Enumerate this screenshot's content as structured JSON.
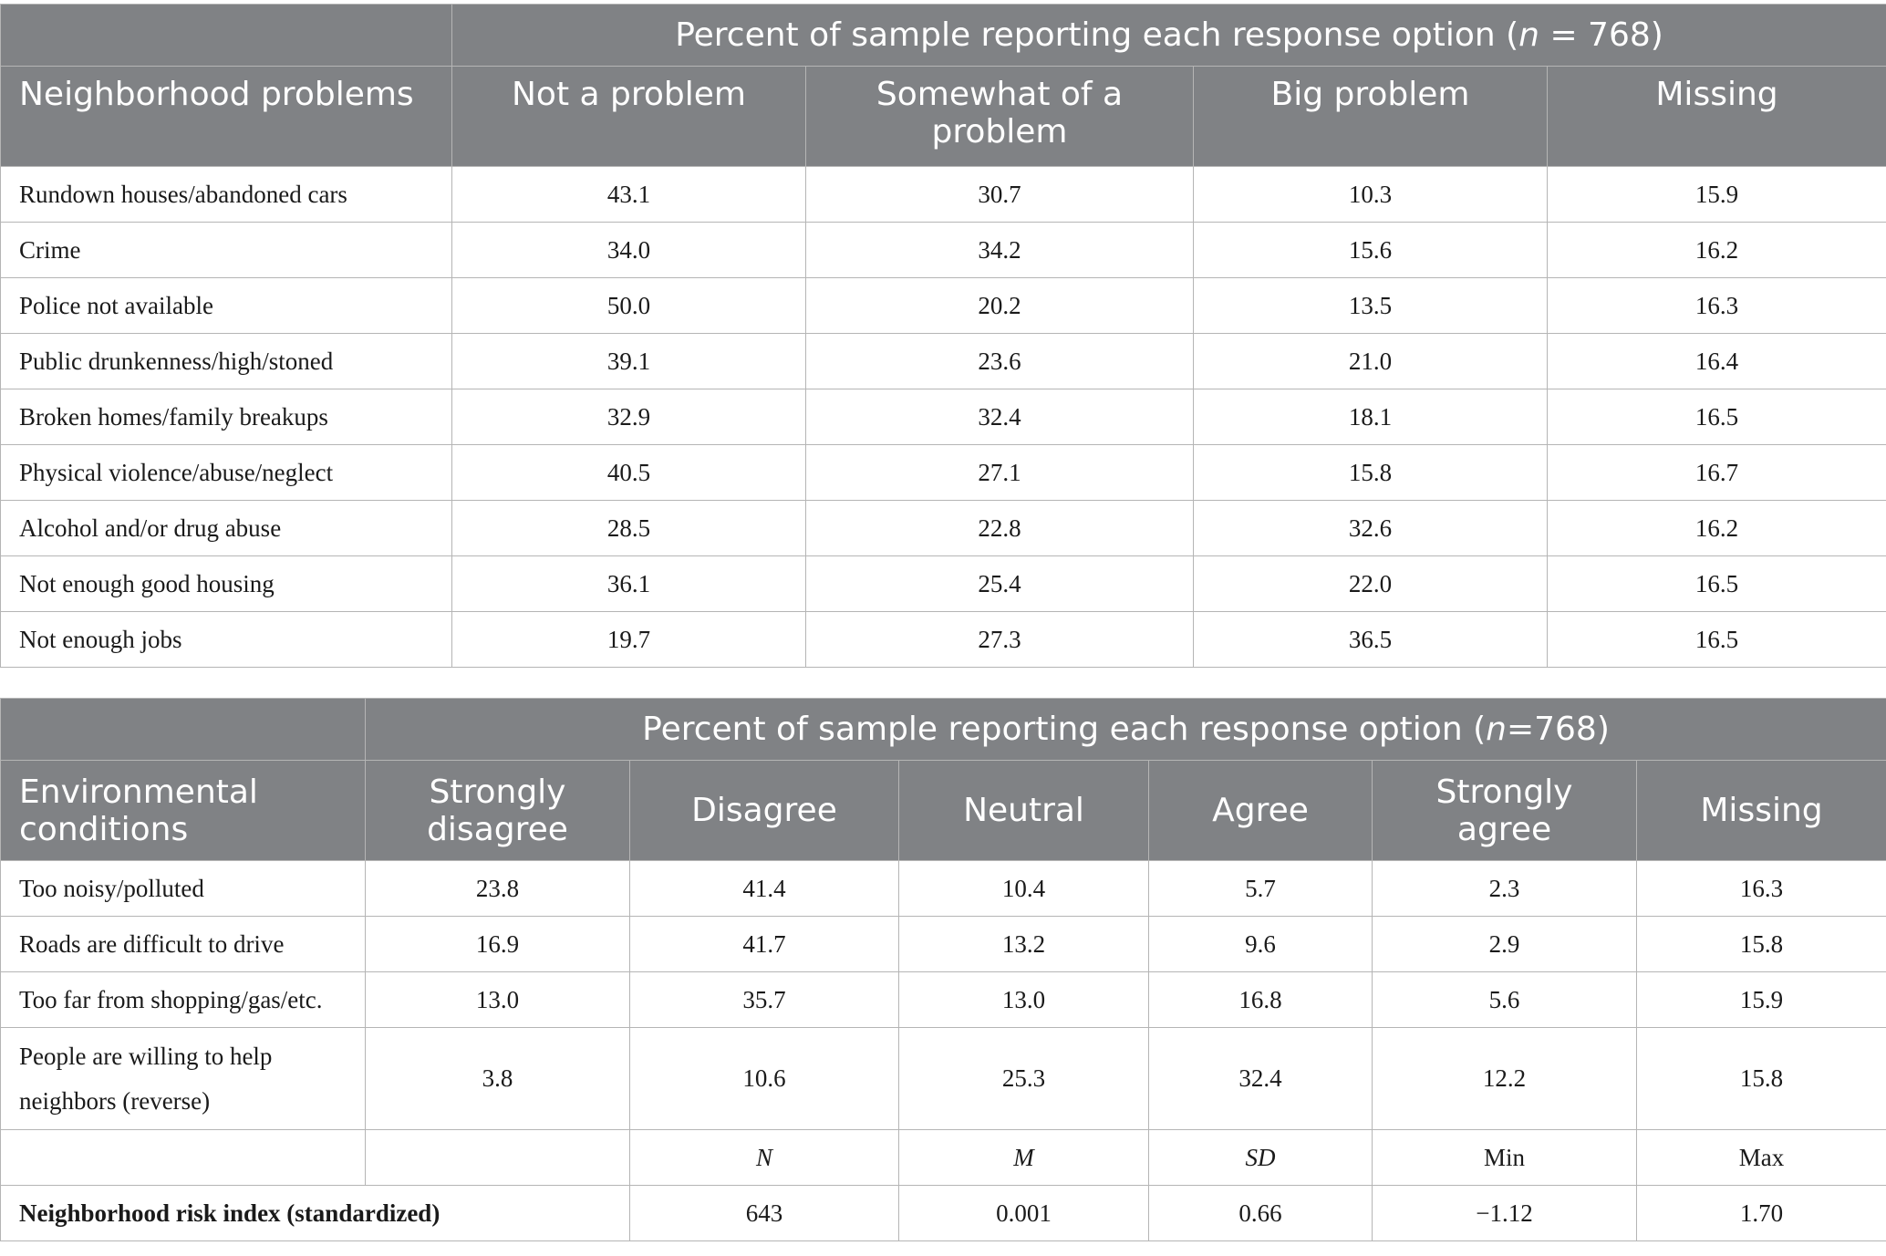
{
  "table1": {
    "group_header_prefix": "Percent of sample reporting each response option (",
    "group_header_n": "n",
    "group_header_suffix": " = 768)",
    "columns": [
      "Neighborhood problems",
      "Not a problem",
      "Somewhat of a problem",
      "Big problem",
      "Missing"
    ],
    "rows": [
      {
        "label": "Rundown houses/abandoned cars",
        "values": [
          "43.1",
          "30.7",
          "10.3",
          "15.9"
        ]
      },
      {
        "label": "Crime",
        "values": [
          "34.0",
          "34.2",
          "15.6",
          "16.2"
        ]
      },
      {
        "label": "Police not available",
        "values": [
          "50.0",
          "20.2",
          "13.5",
          "16.3"
        ]
      },
      {
        "label": "Public drunkenness/high/stoned",
        "values": [
          "39.1",
          "23.6",
          "21.0",
          "16.4"
        ]
      },
      {
        "label": "Broken homes/family breakups",
        "values": [
          "32.9",
          "32.4",
          "18.1",
          "16.5"
        ]
      },
      {
        "label": "Physical violence/abuse/neglect",
        "values": [
          "40.5",
          "27.1",
          "15.8",
          "16.7"
        ]
      },
      {
        "label": "Alcohol and/or drug abuse",
        "values": [
          "28.5",
          "22.8",
          "32.6",
          "16.2"
        ]
      },
      {
        "label": "Not enough good housing",
        "values": [
          "36.1",
          "25.4",
          "22.0",
          "16.5"
        ]
      },
      {
        "label": "Not enough jobs",
        "values": [
          "19.7",
          "27.3",
          "36.5",
          "16.5"
        ]
      }
    ]
  },
  "table2": {
    "group_header_prefix": "Percent of sample reporting each response option (",
    "group_header_n": "n",
    "group_header_suffix": "=768)",
    "columns": [
      "Environmental conditions",
      "Strongly disagree",
      "Disagree",
      "Neutral",
      "Agree",
      "Strongly agree",
      "Missing"
    ],
    "rows": [
      {
        "label": "Too noisy/polluted",
        "values": [
          "23.8",
          "41.4",
          "10.4",
          "5.7",
          "2.3",
          "16.3"
        ]
      },
      {
        "label": "Roads are difficult to drive",
        "values": [
          "16.9",
          "41.7",
          "13.2",
          "9.6",
          "2.9",
          "15.8"
        ]
      },
      {
        "label": "Too far from shopping/gas/etc.",
        "values": [
          "13.0",
          "35.7",
          "13.0",
          "16.8",
          "5.6",
          "15.9"
        ]
      },
      {
        "label": "People are willing to help neighbors (reverse)",
        "values": [
          "3.8",
          "10.6",
          "25.3",
          "32.4",
          "12.2",
          "15.8"
        ]
      }
    ],
    "stats_header": [
      "N",
      "M",
      "SD",
      "Min",
      "Max"
    ],
    "index_row": {
      "label": "Neighborhood risk index (standardized)",
      "values": [
        "643",
        "0.001",
        "0.66",
        "−1.12",
        "1.70"
      ]
    }
  }
}
